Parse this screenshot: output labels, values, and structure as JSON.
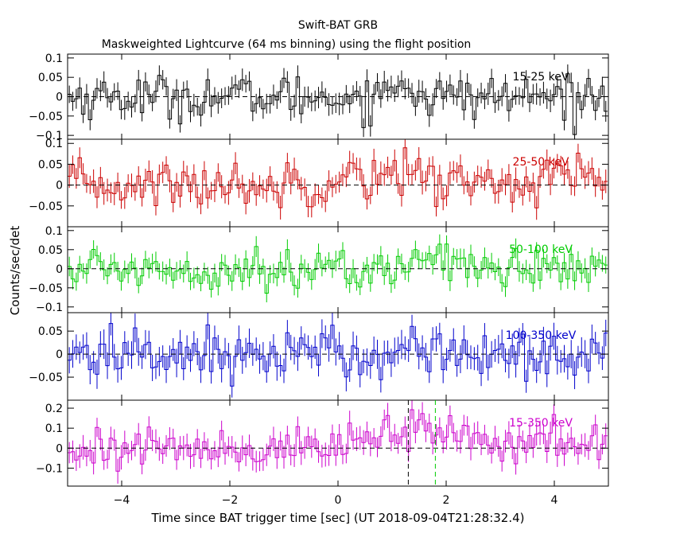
{
  "chart_data": {
    "type": "line",
    "title": "Swift-BAT GRB",
    "subtitle": "Maskweighted Lightcurve (64 ms binning) using the flight position",
    "xlabel": "Time since BAT trigger time [sec] (UT 2018-09-04T21:28:32.4)",
    "ylabel": "Counts/sec/det",
    "xlim": [
      -5,
      5
    ],
    "bin_width_sec": 0.064,
    "x_ticks": [
      -4,
      -2,
      0,
      2,
      4
    ],
    "x_tick_labels": [
      "−4",
      "−2",
      "0",
      "2",
      "4"
    ],
    "markers": [
      {
        "x": 1.3,
        "color": "#000000",
        "panel": 4
      },
      {
        "x": 1.8,
        "color": "#00cc00",
        "panel": 4
      }
    ],
    "panels": [
      {
        "name": "15-25 keV",
        "color": "#000000",
        "ylim": [
          -0.11,
          0.11
        ],
        "y_ticks": [
          -0.1,
          -0.05,
          0,
          0.05,
          0.1
        ],
        "y_tick_labels": [
          "−0.1",
          "−0.05",
          "0",
          "0.05",
          "0.1"
        ],
        "mean": 0.0,
        "std": 0.028,
        "err": 0.026,
        "events": [
          {
            "t": 1.2,
            "width": 0.25,
            "amp": 0.04
          }
        ]
      },
      {
        "name": "25-50 keV",
        "color": "#cc0000",
        "ylim": [
          -0.1,
          0.11
        ],
        "y_ticks": [
          -0.05,
          0,
          0.05,
          0.1
        ],
        "y_tick_labels": [
          "−0.05",
          "0",
          "0.05",
          "0.1"
        ],
        "mean": 0.0,
        "std": 0.028,
        "err": 0.025,
        "events": [
          {
            "t": 0.9,
            "width": 1.2,
            "amp": 0.03
          },
          {
            "t": 4.2,
            "width": 0.8,
            "amp": 0.02
          }
        ]
      },
      {
        "name": "50-100 keV",
        "color": "#00cc00",
        "ylim": [
          -0.115,
          0.11
        ],
        "y_ticks": [
          -0.1,
          -0.05,
          0,
          0.05,
          0.1
        ],
        "y_tick_labels": [
          "−0.1",
          "−0.05",
          "0",
          "0.05",
          "0.1"
        ],
        "mean": 0.0,
        "std": 0.026,
        "err": 0.024,
        "events": [
          {
            "t": 1.8,
            "width": 0.5,
            "amp": 0.04
          },
          {
            "t": 0.3,
            "width": 0.1,
            "amp": -0.06
          }
        ]
      },
      {
        "name": "100-350 keV",
        "color": "#0000cc",
        "ylim": [
          -0.1,
          0.09
        ],
        "y_ticks": [
          -0.05,
          0,
          0.05
        ],
        "y_tick_labels": [
          "−0.05",
          "0",
          "0.05"
        ],
        "mean": 0.0,
        "std": 0.027,
        "err": 0.028,
        "events": [
          {
            "t": 1.4,
            "width": 0.2,
            "amp": 0.03
          }
        ]
      },
      {
        "name": "15-350 keV",
        "color": "#cc00cc",
        "ylim": [
          -0.19,
          0.24
        ],
        "y_ticks": [
          -0.1,
          0,
          0.1,
          0.2
        ],
        "y_tick_labels": [
          "−0.1",
          "0",
          "0.1",
          "0.2"
        ],
        "mean": 0.0,
        "std": 0.052,
        "err": 0.055,
        "events": [
          {
            "t": 1.4,
            "width": 0.9,
            "amp": 0.09
          },
          {
            "t": 3.5,
            "width": 1.5,
            "amp": 0.03
          }
        ]
      }
    ]
  }
}
